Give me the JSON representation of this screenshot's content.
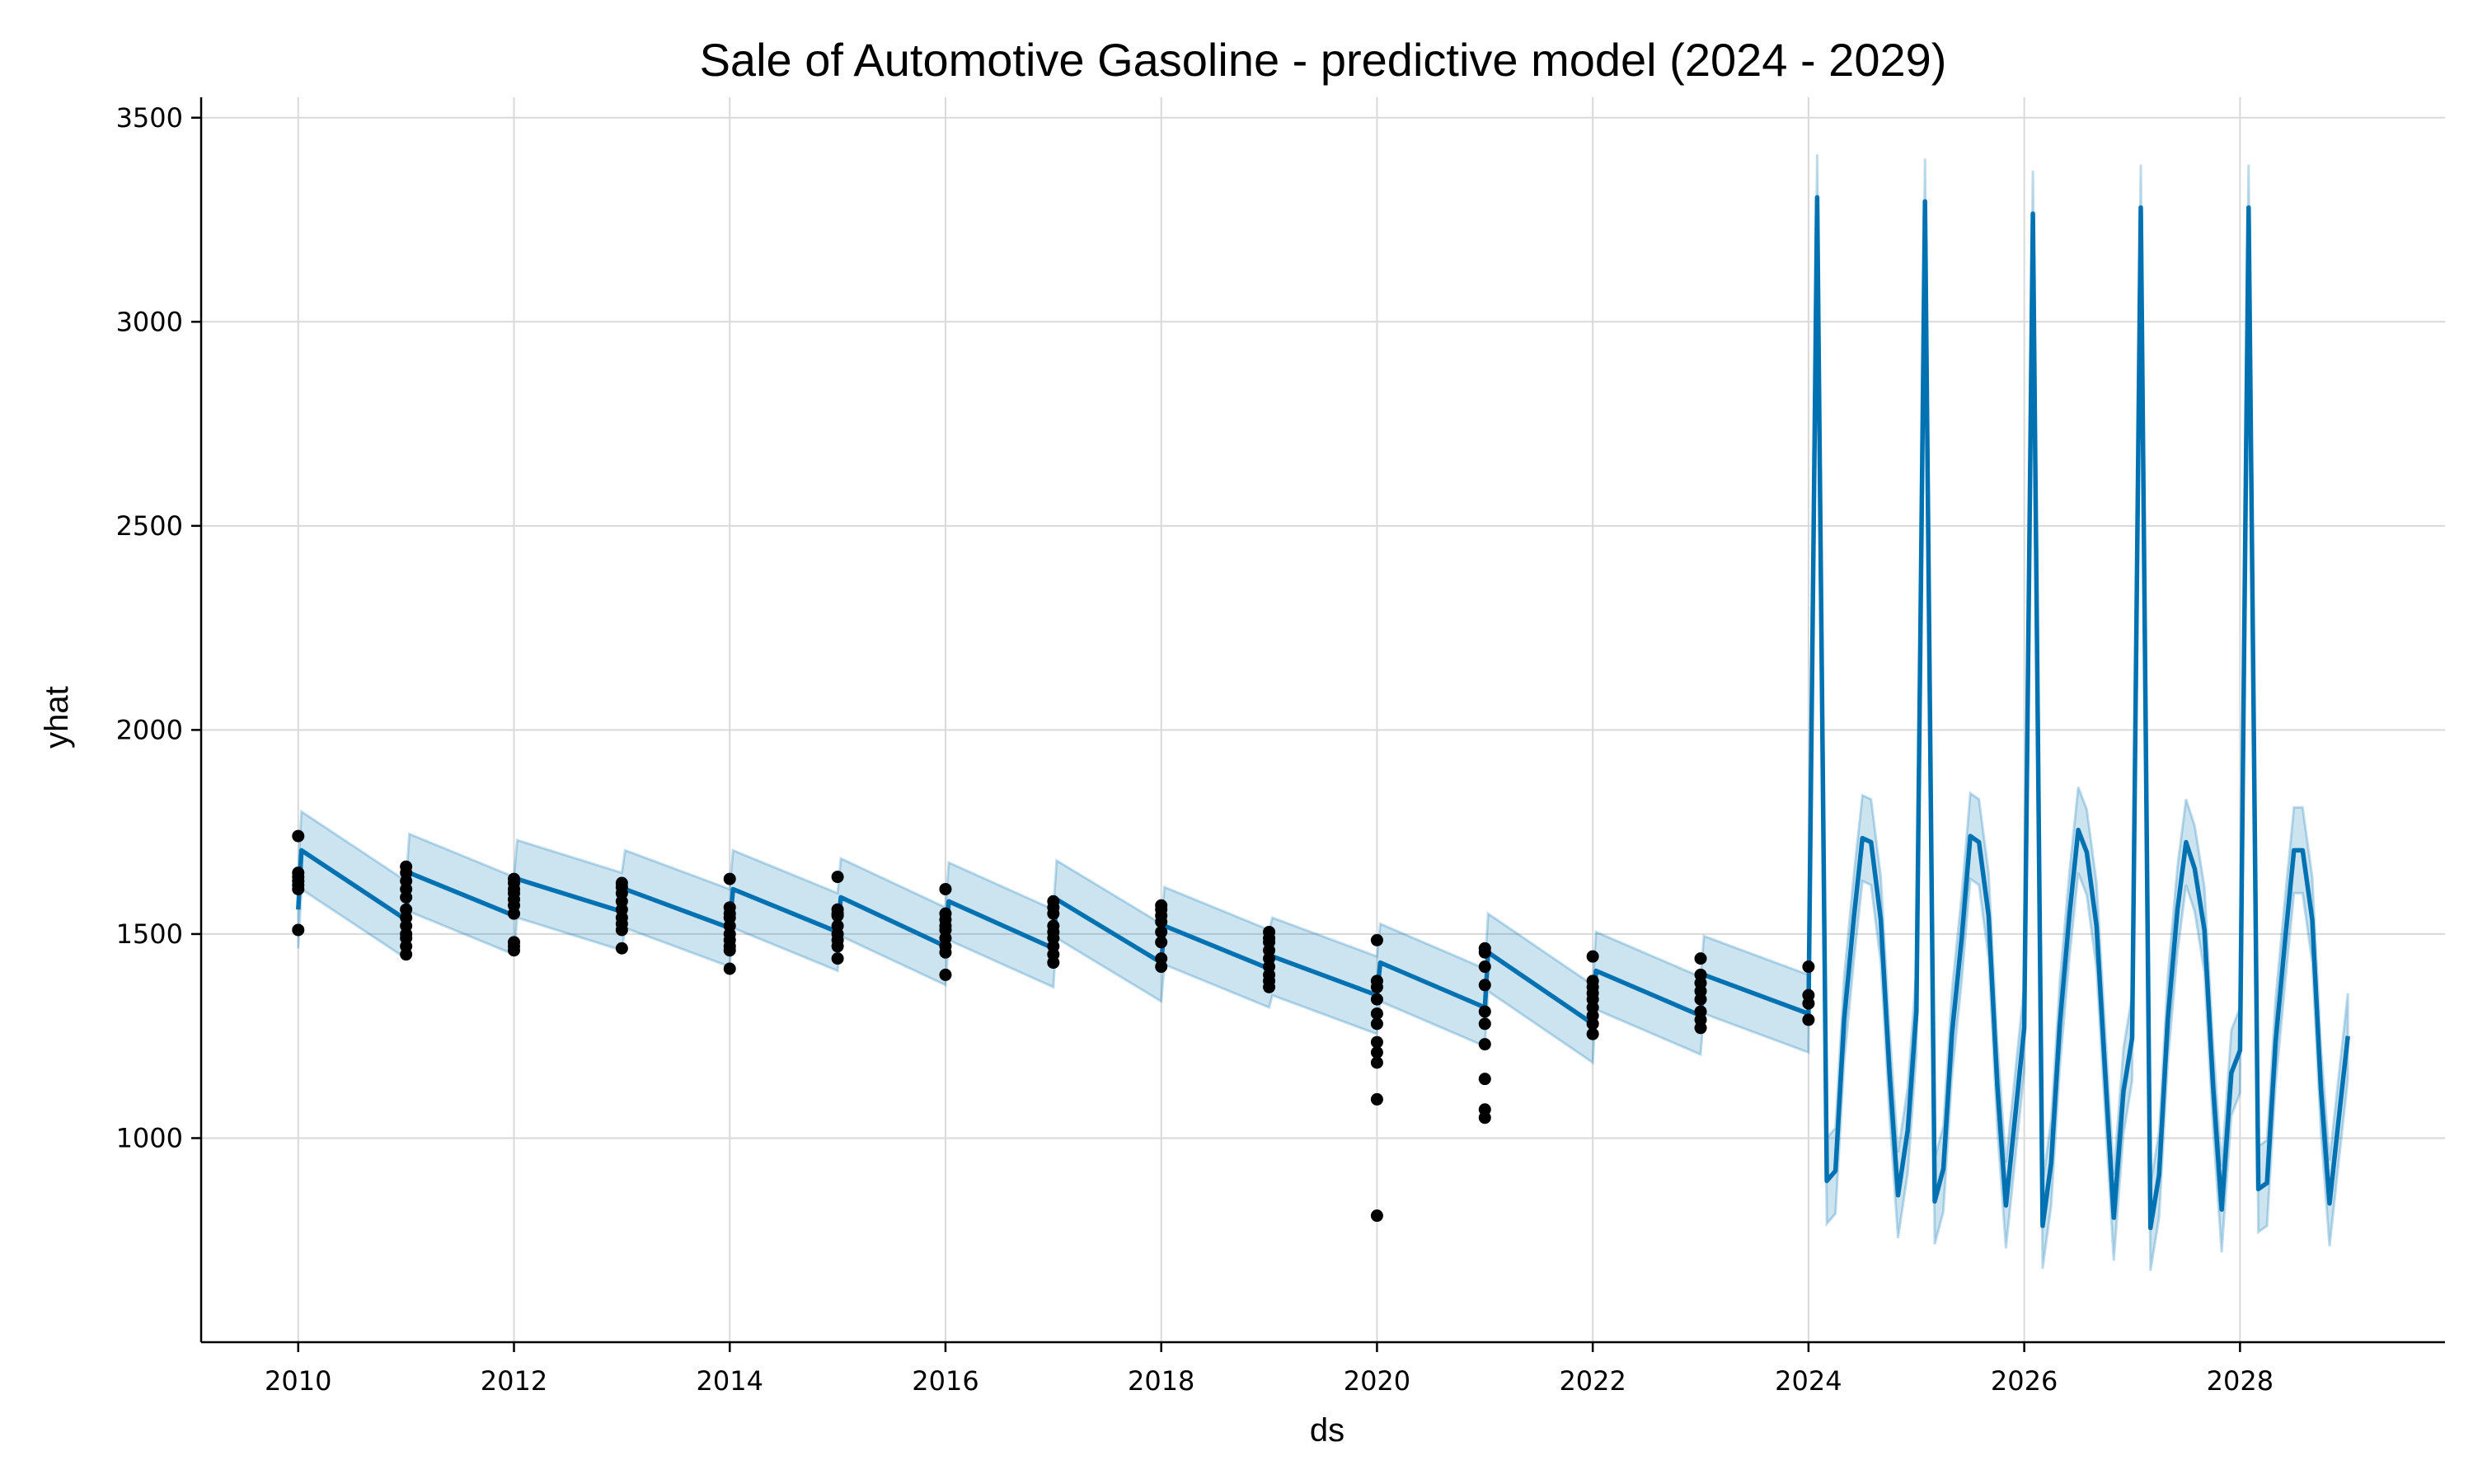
{
  "chart_data": {
    "type": "line",
    "title": "Sale of Automotive Gasoline - predictive model (2024 - 2029)",
    "xlabel": "ds",
    "ylabel": "yhat",
    "xlim": [
      2009.1,
      2029.9
    ],
    "ylim": [
      500,
      3550
    ],
    "x_ticks": [
      "2010",
      "2012",
      "2014",
      "2016",
      "2018",
      "2020",
      "2022",
      "2024",
      "2026",
      "2028"
    ],
    "y_ticks": [
      "1000",
      "1500",
      "2000",
      "2500",
      "3000",
      "3500"
    ],
    "grid": true,
    "colors": {
      "forecast_line": "#0072B2",
      "uncertainty_band": "#0072B2",
      "observed": "#000000",
      "grid": "#d9d9d9"
    },
    "observed": [
      [
        2010,
        1740
      ],
      [
        2010,
        1650
      ],
      [
        2010,
        1640
      ],
      [
        2010,
        1630
      ],
      [
        2010,
        1620
      ],
      [
        2010,
        1610
      ],
      [
        2010,
        1510
      ],
      [
        2011,
        1665
      ],
      [
        2011,
        1650
      ],
      [
        2011,
        1630
      ],
      [
        2011,
        1610
      ],
      [
        2011,
        1590
      ],
      [
        2011,
        1560
      ],
      [
        2011,
        1540
      ],
      [
        2011,
        1520
      ],
      [
        2011,
        1500
      ],
      [
        2011,
        1490
      ],
      [
        2011,
        1470
      ],
      [
        2011,
        1450
      ],
      [
        2012,
        1635
      ],
      [
        2012,
        1625
      ],
      [
        2012,
        1610
      ],
      [
        2012,
        1600
      ],
      [
        2012,
        1585
      ],
      [
        2012,
        1570
      ],
      [
        2012,
        1550
      ],
      [
        2012,
        1480
      ],
      [
        2012,
        1470
      ],
      [
        2012,
        1460
      ],
      [
        2013,
        1625
      ],
      [
        2013,
        1615
      ],
      [
        2013,
        1600
      ],
      [
        2013,
        1580
      ],
      [
        2013,
        1560
      ],
      [
        2013,
        1540
      ],
      [
        2013,
        1525
      ],
      [
        2013,
        1510
      ],
      [
        2013,
        1465
      ],
      [
        2014,
        1635
      ],
      [
        2014,
        1565
      ],
      [
        2014,
        1550
      ],
      [
        2014,
        1540
      ],
      [
        2014,
        1520
      ],
      [
        2014,
        1500
      ],
      [
        2014,
        1485
      ],
      [
        2014,
        1470
      ],
      [
        2014,
        1460
      ],
      [
        2014,
        1415
      ],
      [
        2015,
        1640
      ],
      [
        2015,
        1560
      ],
      [
        2015,
        1550
      ],
      [
        2015,
        1545
      ],
      [
        2015,
        1520
      ],
      [
        2015,
        1500
      ],
      [
        2015,
        1485
      ],
      [
        2015,
        1470
      ],
      [
        2015,
        1440
      ],
      [
        2016,
        1610
      ],
      [
        2016,
        1550
      ],
      [
        2016,
        1535
      ],
      [
        2016,
        1520
      ],
      [
        2016,
        1510
      ],
      [
        2016,
        1490
      ],
      [
        2016,
        1470
      ],
      [
        2016,
        1455
      ],
      [
        2016,
        1400
      ],
      [
        2017,
        1580
      ],
      [
        2017,
        1565
      ],
      [
        2017,
        1550
      ],
      [
        2017,
        1520
      ],
      [
        2017,
        1505
      ],
      [
        2017,
        1490
      ],
      [
        2017,
        1470
      ],
      [
        2017,
        1450
      ],
      [
        2017,
        1430
      ],
      [
        2018,
        1570
      ],
      [
        2018,
        1560
      ],
      [
        2018,
        1545
      ],
      [
        2018,
        1530
      ],
      [
        2018,
        1505
      ],
      [
        2018,
        1480
      ],
      [
        2018,
        1440
      ],
      [
        2018,
        1420
      ],
      [
        2019,
        1505
      ],
      [
        2019,
        1490
      ],
      [
        2019,
        1480
      ],
      [
        2019,
        1460
      ],
      [
        2019,
        1440
      ],
      [
        2019,
        1420
      ],
      [
        2019,
        1400
      ],
      [
        2019,
        1385
      ],
      [
        2019,
        1370
      ],
      [
        2020,
        1485
      ],
      [
        2020,
        1385
      ],
      [
        2020,
        1370
      ],
      [
        2020,
        1340
      ],
      [
        2020,
        1305
      ],
      [
        2020,
        1280
      ],
      [
        2020,
        1235
      ],
      [
        2020,
        1210
      ],
      [
        2020,
        1185
      ],
      [
        2020,
        1095
      ],
      [
        2020,
        810
      ],
      [
        2021,
        1465
      ],
      [
        2021,
        1455
      ],
      [
        2021,
        1420
      ],
      [
        2021,
        1375
      ],
      [
        2021,
        1310
      ],
      [
        2021,
        1280
      ],
      [
        2021,
        1230
      ],
      [
        2021,
        1145
      ],
      [
        2021,
        1070
      ],
      [
        2021,
        1050
      ],
      [
        2022,
        1445
      ],
      [
        2022,
        1385
      ],
      [
        2022,
        1370
      ],
      [
        2022,
        1355
      ],
      [
        2022,
        1340
      ],
      [
        2022,
        1320
      ],
      [
        2022,
        1300
      ],
      [
        2022,
        1280
      ],
      [
        2022,
        1255
      ],
      [
        2023,
        1440
      ],
      [
        2023,
        1400
      ],
      [
        2023,
        1380
      ],
      [
        2023,
        1360
      ],
      [
        2023,
        1340
      ],
      [
        2023,
        1310
      ],
      [
        2023,
        1290
      ],
      [
        2023,
        1270
      ],
      [
        2024,
        1420
      ],
      [
        2024,
        1350
      ],
      [
        2024,
        1330
      ],
      [
        2024,
        1290
      ]
    ],
    "yhat": [
      [
        2010.0,
        1560
      ],
      [
        2010.03,
        1705
      ],
      [
        2011.0,
        1535
      ],
      [
        2011.03,
        1650
      ],
      [
        2012.0,
        1545
      ],
      [
        2012.03,
        1635
      ],
      [
        2013.0,
        1555
      ],
      [
        2013.03,
        1610
      ],
      [
        2014.0,
        1515
      ],
      [
        2014.03,
        1610
      ],
      [
        2015.0,
        1505
      ],
      [
        2015.03,
        1590
      ],
      [
        2016.0,
        1470
      ],
      [
        2016.03,
        1580
      ],
      [
        2017.0,
        1465
      ],
      [
        2017.03,
        1585
      ],
      [
        2018.0,
        1430
      ],
      [
        2018.03,
        1520
      ],
      [
        2019.0,
        1415
      ],
      [
        2019.03,
        1445
      ],
      [
        2020.0,
        1350
      ],
      [
        2020.03,
        1430
      ],
      [
        2021.0,
        1320
      ],
      [
        2021.03,
        1455
      ],
      [
        2022.0,
        1280
      ],
      [
        2022.03,
        1410
      ],
      [
        2023.0,
        1300
      ],
      [
        2023.03,
        1400
      ],
      [
        2024.0,
        1305
      ],
      [
        2024.08,
        3305
      ],
      [
        2024.17,
        895
      ],
      [
        2024.25,
        920
      ],
      [
        2024.33,
        1290
      ],
      [
        2024.42,
        1540
      ],
      [
        2024.5,
        1735
      ],
      [
        2024.58,
        1725
      ],
      [
        2024.67,
        1535
      ],
      [
        2024.75,
        1165
      ],
      [
        2024.83,
        860
      ],
      [
        2024.92,
        1020
      ],
      [
        2025.0,
        1310
      ],
      [
        2025.08,
        3295
      ],
      [
        2025.17,
        845
      ],
      [
        2025.25,
        925
      ],
      [
        2025.33,
        1255
      ],
      [
        2025.42,
        1490
      ],
      [
        2025.5,
        1740
      ],
      [
        2025.58,
        1725
      ],
      [
        2025.67,
        1545
      ],
      [
        2025.75,
        1130
      ],
      [
        2025.83,
        835
      ],
      [
        2025.92,
        1065
      ],
      [
        2026.0,
        1270
      ],
      [
        2026.08,
        3265
      ],
      [
        2026.17,
        785
      ],
      [
        2026.25,
        940
      ],
      [
        2026.33,
        1280
      ],
      [
        2026.42,
        1550
      ],
      [
        2026.5,
        1755
      ],
      [
        2026.58,
        1700
      ],
      [
        2026.67,
        1520
      ],
      [
        2026.75,
        1160
      ],
      [
        2026.83,
        805
      ],
      [
        2026.92,
        1115
      ],
      [
        2027.0,
        1245
      ],
      [
        2027.08,
        3280
      ],
      [
        2027.17,
        780
      ],
      [
        2027.25,
        910
      ],
      [
        2027.33,
        1290
      ],
      [
        2027.42,
        1560
      ],
      [
        2027.5,
        1725
      ],
      [
        2027.58,
        1660
      ],
      [
        2027.67,
        1510
      ],
      [
        2027.75,
        1130
      ],
      [
        2027.83,
        825
      ],
      [
        2027.92,
        1160
      ],
      [
        2028.0,
        1215
      ],
      [
        2028.08,
        3280
      ],
      [
        2028.17,
        875
      ],
      [
        2028.25,
        890
      ],
      [
        2028.33,
        1235
      ],
      [
        2028.42,
        1490
      ],
      [
        2028.5,
        1705
      ],
      [
        2028.58,
        1705
      ],
      [
        2028.67,
        1535
      ],
      [
        2028.75,
        1120
      ],
      [
        2028.83,
        840
      ],
      [
        2028.92,
        1060
      ],
      [
        2029.0,
        1250
      ]
    ],
    "band_width_history": 95,
    "band_width_forecast": 105
  }
}
